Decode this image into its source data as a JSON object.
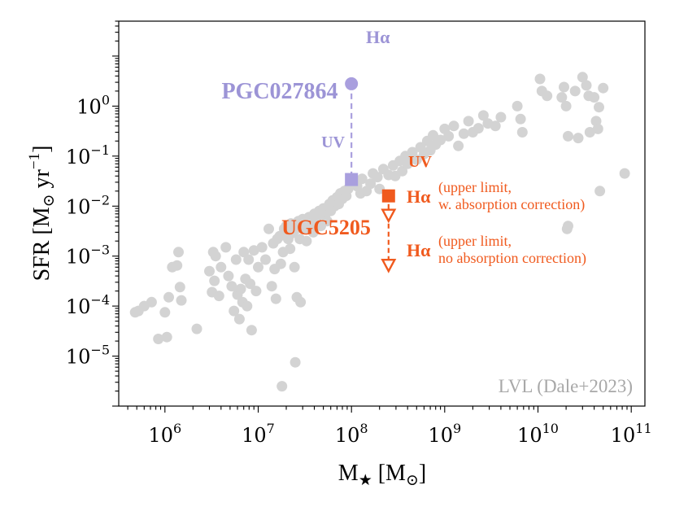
{
  "chart_data": {
    "type": "scatter",
    "xscale": "log",
    "yscale": "log",
    "xlim": [
      320000.0,
      140000000000.0
    ],
    "ylim": [
      1e-06,
      50.0
    ],
    "xlabel": {
      "main": "M",
      "sub": "★",
      "unit_pre": " [M",
      "unit_sub": "⊙",
      "unit_post": "]"
    },
    "ylabel": {
      "main": "SFR [M",
      "sub": "⊙",
      "mid": " yr",
      "sup": "−1",
      "post": "]"
    },
    "x_ticks": [
      {
        "value": 1000000.0,
        "base": "10",
        "exp": "6"
      },
      {
        "value": 10000000.0,
        "base": "10",
        "exp": "7"
      },
      {
        "value": 100000000.0,
        "base": "10",
        "exp": "8"
      },
      {
        "value": 1000000000.0,
        "base": "10",
        "exp": "9"
      },
      {
        "value": 10000000000.0,
        "base": "10",
        "exp": "10"
      },
      {
        "value": 100000000000.0,
        "base": "10",
        "exp": "11"
      }
    ],
    "y_ticks": [
      {
        "value": 1e-05,
        "base": "10",
        "exp": "−5"
      },
      {
        "value": 0.0001,
        "base": "10",
        "exp": "−4"
      },
      {
        "value": 0.001,
        "base": "10",
        "exp": "−3"
      },
      {
        "value": 0.01,
        "base": "10",
        "exp": "−2"
      },
      {
        "value": 0.1,
        "base": "10",
        "exp": "−1"
      },
      {
        "value": 1.0,
        "base": "10",
        "exp": "0"
      }
    ],
    "series": [
      {
        "name": "LVL (Dale+2023)",
        "color": "#d3d3d3",
        "points": [
          [
            480000.0,
            7.5e-05
          ],
          [
            520000.0,
            8e-05
          ],
          [
            600000.0,
            0.0001
          ],
          [
            720000.0,
            0.00012
          ],
          [
            850000.0,
            2.2e-05
          ],
          [
            1000000.0,
            7.5e-05
          ],
          [
            1050000.0,
            2.4e-05
          ],
          [
            1100000.0,
            0.00015
          ],
          [
            1200000.0,
            0.0006
          ],
          [
            1350000.0,
            0.00065
          ],
          [
            1400000.0,
            0.0012
          ],
          [
            1450000.0,
            0.00024
          ],
          [
            1500000.0,
            0.00013
          ],
          [
            2200000.0,
            3.5e-05
          ],
          [
            3000000.0,
            0.0005
          ],
          [
            3200000.0,
            0.00019
          ],
          [
            3300000.0,
            0.0012
          ],
          [
            3400000.0,
            0.00032
          ],
          [
            3500000.0,
            0.001
          ],
          [
            3800000.0,
            0.00016
          ],
          [
            4000000.0,
            0.0006
          ],
          [
            4500000.0,
            0.0015
          ],
          [
            4800000.0,
            0.0004
          ],
          [
            5200000.0,
            0.00025
          ],
          [
            5500000.0,
            8e-05
          ],
          [
            5800000.0,
            0.00085
          ],
          [
            6000000.0,
            0.00017
          ],
          [
            6300000.0,
            5.5e-05
          ],
          [
            6500000.0,
            0.00022
          ],
          [
            6800000.0,
            0.00012
          ],
          [
            7000000.0,
            0.0012
          ],
          [
            7300000.0,
            0.00035
          ],
          [
            7600000.0,
            0.0001
          ],
          [
            7900000.0,
            0.00085
          ],
          [
            8200000.0,
            0.00028
          ],
          [
            8500000.0,
            3.3e-05
          ],
          [
            9000000.0,
            0.0013
          ],
          [
            9500000.0,
            0.0002
          ],
          [
            10000000.0,
            0.0006
          ],
          [
            11000000.0,
            0.0015
          ],
          [
            12000000.0,
            0.00085
          ],
          [
            13000000.0,
            0.0035
          ],
          [
            14000000.0,
            0.00025
          ],
          [
            14500000.0,
            0.0018
          ],
          [
            15000000.0,
            0.00055
          ],
          [
            15500000.0,
            0.00014
          ],
          [
            16000000.0,
            0.0022
          ],
          [
            17000000.0,
            0.0025
          ],
          [
            17500000.0,
            0.0007
          ],
          [
            18000000.0,
            2.5e-06
          ],
          [
            18500000.0,
            0.0012
          ],
          [
            19000000.0,
            0.0035
          ],
          [
            19500000.0,
            0.0028
          ],
          [
            20000000.0,
            0.004
          ],
          [
            21000000.0,
            0.0022
          ],
          [
            22000000.0,
            0.0014
          ],
          [
            22500000.0,
            0.0045
          ],
          [
            23500000.0,
            0.0029
          ],
          [
            24500000.0,
            0.0006
          ],
          [
            25000000.0,
            7.5e-06
          ],
          [
            25500000.0,
            0.0035
          ],
          [
            26000000.0,
            0.00015
          ],
          [
            27000000.0,
            0.005
          ],
          [
            28000000.0,
            0.0022
          ],
          [
            28500000.0,
            0.00012
          ],
          [
            29000000.0,
            0.004
          ],
          [
            30000000.0,
            0.0055
          ],
          [
            32000000.0,
            0.0035
          ],
          [
            33000000.0,
            0.002
          ],
          [
            35000000.0,
            0.006
          ],
          [
            37000000.0,
            0.0045
          ],
          [
            39000000.0,
            0.003
          ],
          [
            40000000.0,
            0.007
          ],
          [
            42000000.0,
            0.0055
          ],
          [
            45000000.0,
            0.008
          ],
          [
            47000000.0,
            0.004
          ],
          [
            50000000.0,
            0.009
          ],
          [
            52000000.0,
            0.0065
          ],
          [
            55000000.0,
            0.005
          ],
          [
            58000000.0,
            0.011
          ],
          [
            60000000.0,
            0.008
          ],
          [
            63000000.0,
            0.013
          ],
          [
            66000000.0,
            0.01
          ],
          [
            70000000.0,
            0.015
          ],
          [
            73000000.0,
            0.011
          ],
          [
            76000000.0,
            0.018
          ],
          [
            80000000.0,
            0.014
          ],
          [
            84000000.0,
            0.02
          ],
          [
            88000000.0,
            0.016
          ],
          [
            92000000.0,
            0.022
          ],
          [
            105000000.0,
            0.03
          ],
          [
            115000000.0,
            0.025
          ],
          [
            125000000.0,
            0.018
          ],
          [
            130000000.0,
            0.035
          ],
          [
            145000000.0,
            0.02
          ],
          [
            160000000.0,
            0.028
          ],
          [
            170000000.0,
            0.045
          ],
          [
            190000000.0,
            0.038
          ],
          [
            200000000.0,
            0.022
          ],
          [
            220000000.0,
            0.055
          ],
          [
            250000000.0,
            0.042
          ],
          [
            280000000.0,
            0.065
          ],
          [
            295000000.0,
            0.04
          ],
          [
            330000000.0,
            0.08
          ],
          [
            350000000.0,
            0.05
          ],
          [
            380000000.0,
            0.1
          ],
          [
            400000000.0,
            0.07
          ],
          [
            450000000.0,
            0.12
          ],
          [
            500000000.0,
            0.085
          ],
          [
            550000000.0,
            0.15
          ],
          [
            600000000.0,
            0.11
          ],
          [
            650000000.0,
            0.2
          ],
          [
            700000000.0,
            0.13
          ],
          [
            750000000.0,
            0.26
          ],
          [
            800000000.0,
            0.17
          ],
          [
            900000000.0,
            0.21
          ],
          [
            1000000000.0,
            0.35
          ],
          [
            1100000000.0,
            0.25
          ],
          [
            1250000000.0,
            0.4
          ],
          [
            1400000000.0,
            0.16
          ],
          [
            1600000000.0,
            0.28
          ],
          [
            1800000000.0,
            0.5
          ],
          [
            2000000000.0,
            0.3
          ],
          [
            2300000000.0,
            0.36
          ],
          [
            2600000000.0,
            0.65
          ],
          [
            2900000000.0,
            0.45
          ],
          [
            3500000000.0,
            0.4
          ],
          [
            4000000000.0,
            0.6
          ],
          [
            6000000000.0,
            1.0
          ],
          [
            6500000000.0,
            0.55
          ],
          [
            6800000000.0,
            0.3
          ],
          [
            10500000000.0,
            3.5
          ],
          [
            11000000000.0,
            2.0
          ],
          [
            12500000000.0,
            1.6
          ],
          [
            18000000000.0,
            1.5
          ],
          [
            19000000000.0,
            2.4
          ],
          [
            20000000000.0,
            1.0
          ],
          [
            21000000000.0,
            0.25
          ],
          [
            25000000000.0,
            2.0
          ],
          [
            27000000000.0,
            0.23
          ],
          [
            30000000000.0,
            3.8
          ],
          [
            33000000000.0,
            2.6
          ],
          [
            35000000000.0,
            1.6
          ],
          [
            36000000000.0,
            0.3
          ],
          [
            40000000000.0,
            1.5
          ],
          [
            42000000000.0,
            0.5
          ],
          [
            45000000000.0,
            0.95
          ],
          [
            50000000000.0,
            2.3
          ],
          [
            46000000000.0,
            0.02
          ],
          [
            44000000000.0,
            0.35
          ],
          [
            21000000000.0,
            0.004
          ],
          [
            20500000000.0,
            0.0035
          ],
          [
            85000000000.0,
            0.045
          ]
        ]
      },
      {
        "name": "PGC027864",
        "color": "#a99fde",
        "ha": {
          "x": 100000000.0,
          "y": 2.8,
          "label": "Hα"
        },
        "uv": {
          "x": 100000000.0,
          "y": 0.034,
          "label": "UV"
        }
      },
      {
        "name": "UGC5205",
        "color": "#f05a1e",
        "uv": {
          "x": 250000000.0,
          "y": 0.016,
          "label": "UV"
        },
        "ha_corr": {
          "x": 250000000.0,
          "y": 0.0065,
          "label": "Hα",
          "note": [
            "(upper limit,",
            "w. absorption correction)"
          ]
        },
        "ha_nocorr": {
          "x": 250000000.0,
          "y": 0.00065,
          "label": "Hα",
          "note": [
            "(upper limit,",
            "no absorption correction)"
          ]
        }
      }
    ],
    "legend_text": "LVL (Dale+2023)"
  }
}
